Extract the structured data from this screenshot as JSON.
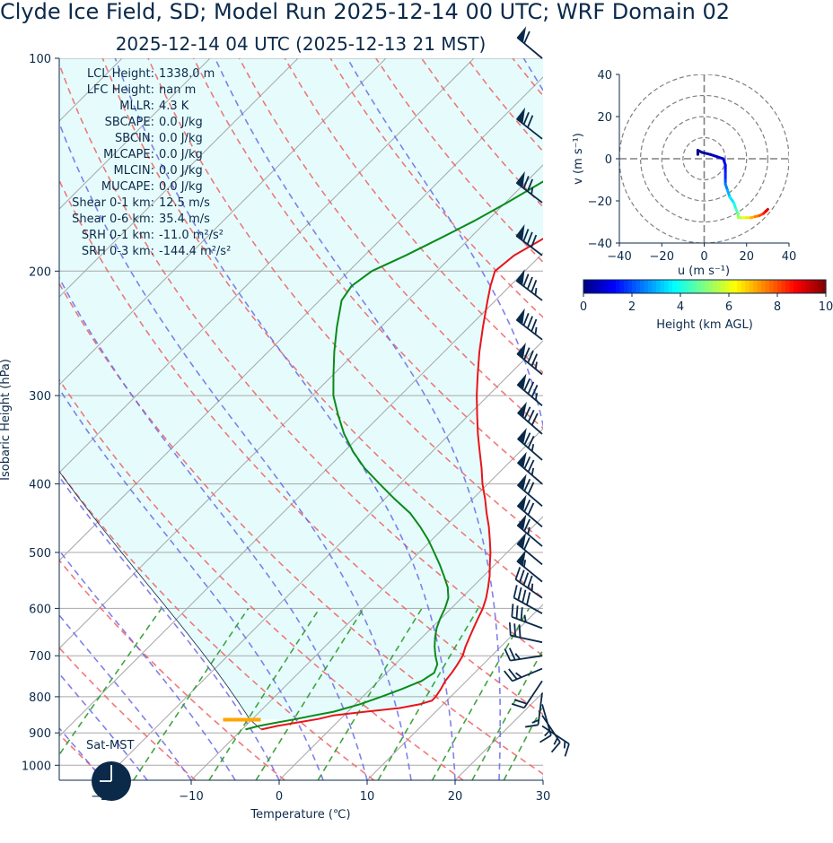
{
  "title": "Clyde Ice Field, SD; Model Run 2025-12-14 00 UTC; WRF Domain 02",
  "subtitle": "2025-12-14 04 UTC  (2025-12-13 21 MST)",
  "colors": {
    "temperature": "#e8141b",
    "dewpoint": "#0a8a1a",
    "dry_adiabat": "#f06060",
    "moist_adiabat": "#6a6ae8",
    "mixing_ratio": "#2a9a2a",
    "isotherm": "#a8a8a8",
    "cape_fill": "#e6fcfc",
    "lcl_marker": "#ffa500",
    "barb": "#0b2a4a",
    "clock": "#0b2a4a",
    "text": "#0b2a4a"
  },
  "stats": [
    {
      "label": "LCL Height:",
      "value": "1338.0 m"
    },
    {
      "label": "LFC Height:",
      "value": "nan m"
    },
    {
      "label": "MLLR:",
      "value": "4.3 K"
    },
    {
      "label": "SBCAPE:",
      "value": "0.0 J/kg"
    },
    {
      "label": "SBCIN:",
      "value": "0.0 J/kg"
    },
    {
      "label": "MLCAPE:",
      "value": "0.0 J/kg"
    },
    {
      "label": "MLCIN:",
      "value": "0.0 J/kg"
    },
    {
      "label": "MUCAPE:",
      "value": "0.0 J/kg"
    },
    {
      "label": "Shear 0-1 km:",
      "value": "12.5 m/s"
    },
    {
      "label": "Shear 0-6 km:",
      "value": "35.4 m/s"
    },
    {
      "label": "SRH 0-1 km:",
      "value": "-11.0 m²/s²"
    },
    {
      "label": "SRH 0-3 km:",
      "value": "-144.4 m²/s²"
    }
  ],
  "sat_label": "Sat-MST",
  "chart_data": [
    {
      "type": "line",
      "subtype": "skew-T log-P",
      "xlabel": "Temperature (℃)",
      "ylabel": "Isobaric Height (hPa)",
      "xlim": [
        -25,
        30
      ],
      "ylim": [
        1050,
        100
      ],
      "y_scale": "log",
      "x_ticks": [
        -20,
        -10,
        0,
        10,
        20,
        30
      ],
      "x_tick_labels": [
        "−20",
        "−10",
        "0",
        "10",
        "20",
        "30"
      ],
      "y_ticks": [
        100,
        200,
        300,
        400,
        500,
        600,
        700,
        800,
        900,
        1000
      ],
      "y_tick_labels": [
        "100",
        "200",
        "300",
        "400",
        "500",
        "600",
        "700",
        "800",
        "900",
        "1000"
      ],
      "temperature": {
        "p": [
          890,
          880,
          870,
          860,
          850,
          840,
          830,
          820,
          810,
          800,
          780,
          760,
          740,
          720,
          700,
          680,
          660,
          640,
          620,
          600,
          580,
          560,
          540,
          520,
          500,
          480,
          460,
          440,
          420,
          400,
          380,
          360,
          340,
          320,
          300,
          280,
          260,
          240,
          220,
          210,
          200,
          190,
          180,
          170,
          160,
          150,
          140,
          130,
          120,
          110,
          100
        ],
        "t": [
          -7.8,
          -6.4,
          -4.5,
          -2.5,
          -1.2,
          2.0,
          5.5,
          7.3,
          8.3,
          8.3,
          8.0,
          7.6,
          7.4,
          7.1,
          6.7,
          6.0,
          5.4,
          4.8,
          4.2,
          3.6,
          2.8,
          1.8,
          0.7,
          -0.6,
          -1.9,
          -3.4,
          -5.0,
          -6.8,
          -8.6,
          -10.6,
          -12.5,
          -14.6,
          -16.8,
          -19.0,
          -21.3,
          -23.6,
          -26.0,
          -28.4,
          -30.9,
          -32.2,
          -33.4,
          -33.0,
          -31.6,
          -30.0,
          -28.2,
          -26.4,
          -24.4,
          -22.4,
          -20.3,
          -18.1,
          -15.9
        ]
      },
      "dewpoint": {
        "p": [
          890,
          880,
          870,
          860,
          850,
          840,
          820,
          800,
          780,
          760,
          740,
          720,
          700,
          680,
          660,
          640,
          620,
          600,
          580,
          560,
          540,
          520,
          500,
          480,
          460,
          440,
          420,
          400,
          380,
          360,
          340,
          320,
          300,
          280,
          260,
          240,
          220,
          210,
          200,
          190,
          180,
          170,
          160,
          150,
          140,
          130,
          120,
          110,
          100
        ],
        "td": [
          -9.6,
          -8.5,
          -6.8,
          -5.0,
          -3.4,
          -1.6,
          0.5,
          2.1,
          3.6,
          4.9,
          5.4,
          4.8,
          3.6,
          2.5,
          1.5,
          0.6,
          -0.1,
          -0.7,
          -1.5,
          -2.8,
          -4.5,
          -6.3,
          -8.3,
          -10.4,
          -12.8,
          -15.5,
          -18.9,
          -22.3,
          -25.8,
          -29.0,
          -32.0,
          -34.8,
          -37.6,
          -40.0,
          -42.5,
          -45.0,
          -47.5,
          -48.0,
          -47.4,
          -45.3,
          -43.4,
          -41.5,
          -39.8,
          -38.2,
          -36.5,
          -34.8,
          -33.0,
          -31.2,
          -29.4
        ]
      },
      "parcel": {
        "p": [
          890,
          100
        ],
        "t": [
          -7.8,
          -57
        ]
      },
      "lcl_pressure": 862,
      "wind_profile": {
        "p": [
          100,
          130,
          160,
          190,
          220,
          250,
          280,
          310,
          340,
          370,
          400,
          430,
          460,
          490,
          520,
          550,
          580,
          610,
          640,
          670,
          700,
          730,
          760,
          790,
          820,
          850,
          880
        ],
        "u": [
          24,
          28,
          31,
          33,
          34,
          35,
          34,
          33,
          31,
          30,
          29,
          28,
          27,
          26,
          24,
          22,
          20,
          18,
          16,
          14,
          13,
          12,
          6,
          1,
          -2,
          -4,
          -6
        ],
        "v": [
          -20,
          -22,
          -24,
          -25,
          -26,
          -27,
          -28,
          -28,
          -27,
          -26,
          -25,
          -24,
          -23,
          -22,
          -20,
          -18,
          -14,
          -10,
          -6,
          -3,
          2,
          5,
          9,
          8,
          7,
          6,
          4
        ]
      }
    },
    {
      "type": "line",
      "subtype": "hodograph",
      "xlabel": "u (m s⁻¹)",
      "ylabel": "v (m s⁻¹)",
      "xlim": [
        -40,
        40
      ],
      "ylim": [
        -40,
        40
      ],
      "x_ticks": [
        -40,
        -20,
        0,
        20,
        40
      ],
      "x_tick_labels": [
        "−40",
        "−20",
        "0",
        "20",
        "40"
      ],
      "y_ticks": [
        -40,
        -20,
        0,
        20,
        40
      ],
      "y_tick_labels": [
        "−40",
        "−20",
        "0",
        "20",
        "40"
      ],
      "rings": [
        10,
        20,
        30,
        40
      ],
      "points": {
        "h": [
          0.0,
          0.2,
          0.4,
          0.6,
          0.8,
          1.0,
          1.3,
          1.6,
          2.0,
          2.5,
          3.0,
          3.5,
          4.0,
          4.5,
          5.0,
          5.5,
          6.0,
          6.5,
          7.0,
          7.5,
          8.0,
          8.5,
          9.0,
          9.5
        ],
        "u": [
          -3,
          -3,
          -1,
          3,
          6,
          9,
          10,
          10,
          10,
          10,
          11,
          12,
          14,
          15,
          16,
          16,
          18,
          20,
          22,
          24,
          26,
          28,
          29,
          30
        ],
        "v": [
          2,
          4,
          3,
          2,
          1,
          0,
          -3,
          -6,
          -10,
          -12,
          -15,
          -18,
          -21,
          -24,
          -26,
          -28,
          -28,
          -28,
          -28,
          -27.5,
          -27,
          -26,
          -25,
          -24
        ]
      }
    },
    {
      "type": "heatmap",
      "subtype": "colorbar",
      "label": "Height (km AGL)",
      "range": [
        0,
        10
      ],
      "ticks": [
        0,
        2,
        4,
        6,
        8,
        10
      ],
      "tick_labels": [
        "0",
        "2",
        "4",
        "6",
        "8",
        "10"
      ],
      "colormap": "jet"
    }
  ]
}
